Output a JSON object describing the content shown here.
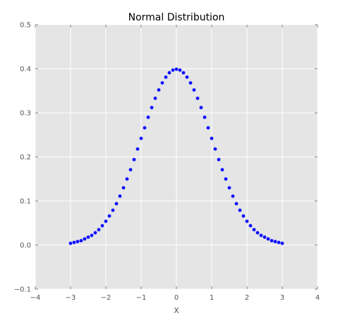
{
  "chart_data": {
    "type": "scatter",
    "title": "Normal Distribution",
    "xlabel": "X",
    "ylabel": "",
    "xlim": [
      -4,
      4
    ],
    "ylim": [
      -0.1,
      0.5
    ],
    "xticks": [
      -4,
      -3,
      -2,
      -1,
      0,
      1,
      2,
      3,
      4
    ],
    "yticks": [
      -0.1,
      0.0,
      0.1,
      0.2,
      0.3,
      0.4,
      0.5
    ],
    "xtick_labels": [
      "−4",
      "−3",
      "−2",
      "−1",
      "0",
      "1",
      "2",
      "3",
      "4"
    ],
    "ytick_labels": [
      "−0.1",
      "0.0",
      "0.1",
      "0.2",
      "0.3",
      "0.4",
      "0.5"
    ],
    "grid": true,
    "legend": "none",
    "series": [
      {
        "x": [
          -3.0,
          -2.9,
          -2.8,
          -2.7,
          -2.6,
          -2.5,
          -2.4,
          -2.3,
          -2.2,
          -2.1,
          -2.0,
          -1.9,
          -1.8,
          -1.7,
          -1.6,
          -1.5,
          -1.4,
          -1.3,
          -1.2,
          -1.1,
          -1.0,
          -0.9,
          -0.8,
          -0.7,
          -0.6,
          -0.5,
          -0.4,
          -0.3,
          -0.2,
          -0.1,
          0.0,
          0.1,
          0.2,
          0.3,
          0.4,
          0.5,
          0.6,
          0.7,
          0.8,
          0.9,
          1.0,
          1.1,
          1.2,
          1.3,
          1.4,
          1.5,
          1.6,
          1.7,
          1.8,
          1.9,
          2.0,
          2.1,
          2.2,
          2.3,
          2.4,
          2.5,
          2.6,
          2.7,
          2.8,
          2.9,
          3.0
        ],
        "y": [
          0.004,
          0.006,
          0.008,
          0.01,
          0.014,
          0.018,
          0.022,
          0.028,
          0.035,
          0.044,
          0.054,
          0.066,
          0.079,
          0.094,
          0.111,
          0.13,
          0.15,
          0.171,
          0.194,
          0.218,
          0.242,
          0.266,
          0.29,
          0.312,
          0.333,
          0.352,
          0.368,
          0.381,
          0.391,
          0.397,
          0.399,
          0.397,
          0.391,
          0.381,
          0.368,
          0.352,
          0.333,
          0.312,
          0.29,
          0.266,
          0.242,
          0.218,
          0.194,
          0.171,
          0.15,
          0.13,
          0.111,
          0.094,
          0.079,
          0.066,
          0.054,
          0.044,
          0.035,
          0.028,
          0.022,
          0.018,
          0.014,
          0.01,
          0.008,
          0.006,
          0.004
        ]
      }
    ]
  },
  "colors": {
    "plot_background": "#e5e5e5",
    "grid": "#ffffff",
    "marker": "#0000ff",
    "tick_text": "#555555",
    "title_text": "#000000"
  }
}
